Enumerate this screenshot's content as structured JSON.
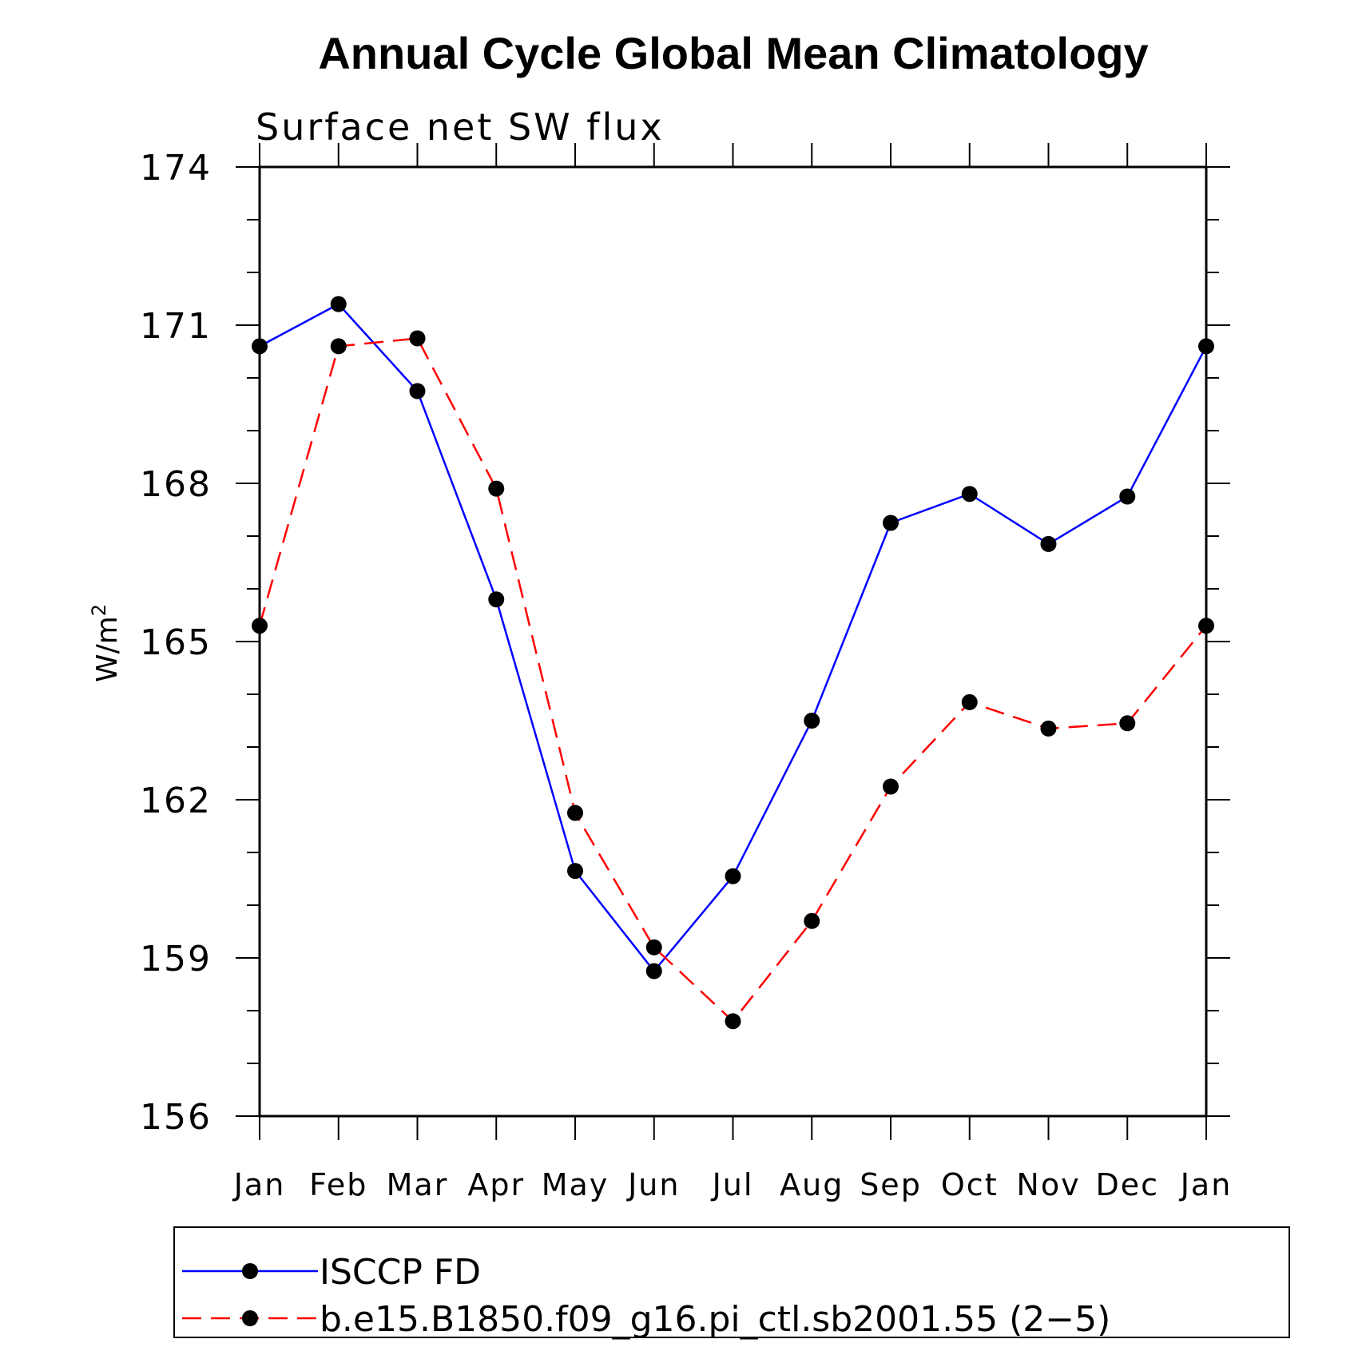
{
  "chart_data": {
    "type": "line",
    "title": "Annual Cycle Global Mean Climatology",
    "subtitle": "Surface net SW flux",
    "ylabel_base": "W/m",
    "ylabel_sup": "2",
    "xlabel": "",
    "categories": [
      "Jan",
      "Feb",
      "Mar",
      "Apr",
      "May",
      "Jun",
      "Jul",
      "Aug",
      "Sep",
      "Oct",
      "Nov",
      "Dec",
      "Jan"
    ],
    "ylim": [
      156,
      174
    ],
    "yticks": [
      "156",
      "159",
      "162",
      "165",
      "168",
      "171",
      "174"
    ],
    "grid": false,
    "legend_position": "bottom",
    "series": [
      {
        "name": "ISCCP FD",
        "color": "#0000ff",
        "style": "solid",
        "values": [
          170.6,
          171.4,
          169.75,
          165.8,
          160.65,
          158.75,
          160.55,
          163.5,
          167.25,
          167.8,
          166.85,
          167.75,
          170.6
        ]
      },
      {
        "name": "b.e15.B1850.f09_g16.pi_ctl.sb2001.55 (2−5)",
        "color": "#ff0000",
        "style": "dashed",
        "values": [
          165.3,
          170.6,
          170.75,
          167.9,
          161.75,
          159.2,
          157.8,
          159.7,
          162.25,
          163.85,
          163.35,
          163.45,
          165.3
        ]
      }
    ]
  }
}
